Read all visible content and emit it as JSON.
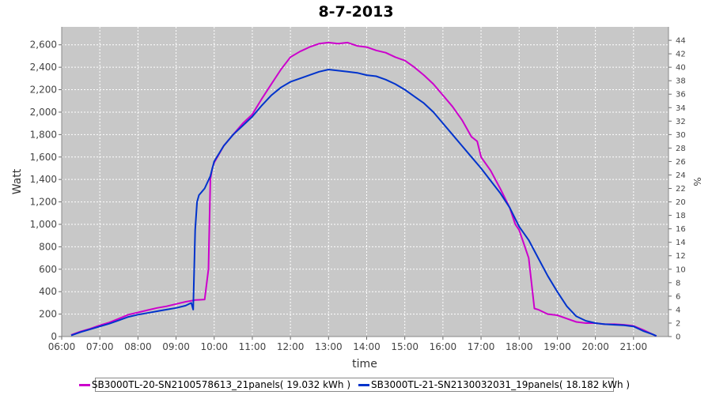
{
  "chart_data": {
    "type": "line",
    "title": "8-7-2013",
    "xlabel": "time",
    "ylabel": "Watt",
    "y2label": "%",
    "xlim": [
      6.0,
      21.917
    ],
    "ylim": [
      0,
      2760
    ],
    "y2lim": [
      0,
      46
    ],
    "x_ticks": [
      "06:00",
      "07:00",
      "08:00",
      "09:00",
      "10:00",
      "11:00",
      "12:00",
      "13:00",
      "14:00",
      "15:00",
      "16:00",
      "17:00",
      "18:00",
      "19:00",
      "20:00",
      "21:00"
    ],
    "y_ticks": [
      "0",
      "200",
      "400",
      "600",
      "800",
      "1,000",
      "1,200",
      "1,400",
      "1,600",
      "1,800",
      "2,000",
      "2,200",
      "2,400",
      "2,600"
    ],
    "y2_ticks": [
      "0",
      "2",
      "4",
      "6",
      "8",
      "10",
      "12",
      "14",
      "16",
      "18",
      "20",
      "22",
      "24",
      "26",
      "28",
      "30",
      "32",
      "34",
      "36",
      "38",
      "40",
      "42",
      "44"
    ],
    "grid": true,
    "legend_position": "bottom",
    "series": [
      {
        "name": "SB3000TL-20-SN2100578613_21panels( 19.032 kWh )",
        "color": "#cc00cc",
        "x": [
          6.25,
          6.5,
          6.75,
          7.0,
          7.25,
          7.5,
          7.75,
          8.0,
          8.25,
          8.5,
          8.75,
          9.0,
          9.25,
          9.5,
          9.75,
          9.85,
          9.9,
          9.95,
          10.0,
          10.25,
          10.5,
          10.75,
          11.0,
          11.25,
          11.5,
          11.75,
          12.0,
          12.25,
          12.5,
          12.75,
          13.0,
          13.25,
          13.5,
          13.75,
          14.0,
          14.25,
          14.5,
          14.75,
          15.0,
          15.25,
          15.5,
          15.75,
          16.0,
          16.25,
          16.5,
          16.75,
          16.9,
          17.0,
          17.25,
          17.5,
          17.75,
          17.9,
          18.0,
          18.25,
          18.4,
          18.5,
          18.75,
          19.0,
          19.25,
          19.5,
          19.75,
          20.0,
          20.25,
          20.5,
          20.75,
          21.0,
          21.25,
          21.5,
          21.6
        ],
        "values": [
          15,
          45,
          70,
          100,
          125,
          160,
          195,
          215,
          235,
          255,
          270,
          290,
          310,
          325,
          330,
          600,
          1400,
          1500,
          1550,
          1700,
          1800,
          1900,
          1980,
          2120,
          2250,
          2380,
          2490,
          2540,
          2580,
          2610,
          2620,
          2610,
          2620,
          2590,
          2580,
          2550,
          2530,
          2490,
          2460,
          2400,
          2330,
          2250,
          2150,
          2050,
          1930,
          1780,
          1740,
          1600,
          1480,
          1320,
          1150,
          1000,
          950,
          700,
          250,
          240,
          200,
          190,
          160,
          130,
          120,
          120,
          110,
          110,
          105,
          95,
          60,
          20,
          5
        ]
      },
      {
        "name": "SB3000TL-21-SN2130032031_19panels( 18.182 kWh )",
        "color": "#0033cc",
        "x": [
          6.25,
          6.5,
          6.75,
          7.0,
          7.25,
          7.5,
          7.75,
          8.0,
          8.25,
          8.5,
          8.75,
          9.0,
          9.25,
          9.4,
          9.45,
          9.5,
          9.55,
          9.6,
          9.75,
          9.9,
          10.0,
          10.25,
          10.5,
          10.75,
          11.0,
          11.25,
          11.5,
          11.75,
          12.0,
          12.25,
          12.5,
          12.75,
          13.0,
          13.25,
          13.5,
          13.75,
          14.0,
          14.25,
          14.5,
          14.75,
          15.0,
          15.25,
          15.5,
          15.75,
          16.0,
          16.25,
          16.5,
          16.75,
          17.0,
          17.25,
          17.5,
          17.75,
          18.0,
          18.25,
          18.5,
          18.75,
          19.0,
          19.25,
          19.5,
          19.75,
          20.0,
          20.25,
          20.5,
          20.75,
          21.0,
          21.25,
          21.5,
          21.6
        ],
        "values": [
          10,
          40,
          65,
          90,
          115,
          145,
          175,
          195,
          210,
          225,
          240,
          255,
          275,
          300,
          240,
          950,
          1200,
          1260,
          1320,
          1430,
          1560,
          1700,
          1800,
          1880,
          1960,
          2060,
          2150,
          2220,
          2270,
          2300,
          2330,
          2360,
          2380,
          2370,
          2360,
          2350,
          2330,
          2320,
          2290,
          2250,
          2200,
          2140,
          2080,
          2000,
          1900,
          1800,
          1700,
          1600,
          1500,
          1390,
          1280,
          1150,
          980,
          860,
          700,
          540,
          400,
          270,
          180,
          140,
          120,
          110,
          105,
          100,
          90,
          50,
          20,
          5
        ]
      }
    ]
  }
}
